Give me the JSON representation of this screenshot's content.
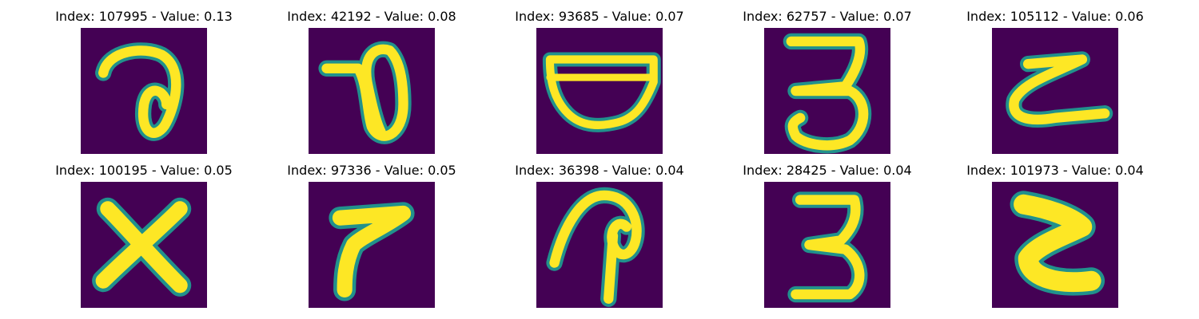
{
  "panels": [
    {
      "title": "Index: 107995 - Value: 0.13",
      "glyph": "a"
    },
    {
      "title": "Index: 42192 - Value: 0.08",
      "glyph": "9"
    },
    {
      "title": "Index: 93685 - Value: 0.07",
      "glyph": "cup"
    },
    {
      "title": "Index: 62757 - Value: 0.07",
      "glyph": "3"
    },
    {
      "title": "Index: 105112 - Value: 0.06",
      "glyph": "z"
    },
    {
      "title": "Index: 100195 - Value: 0.05",
      "glyph": "x"
    },
    {
      "title": "Index: 97336 - Value: 0.05",
      "glyph": "7"
    },
    {
      "title": "Index: 36398 - Value: 0.04",
      "glyph": "p"
    },
    {
      "title": "Index: 28425 - Value: 0.04",
      "glyph": "3"
    },
    {
      "title": "Index: 101973 - Value: 0.04",
      "glyph": "z-bold"
    }
  ],
  "colors": {
    "background": "#440154",
    "stroke_edge": "#21918c",
    "stroke_core": "#fde725"
  }
}
